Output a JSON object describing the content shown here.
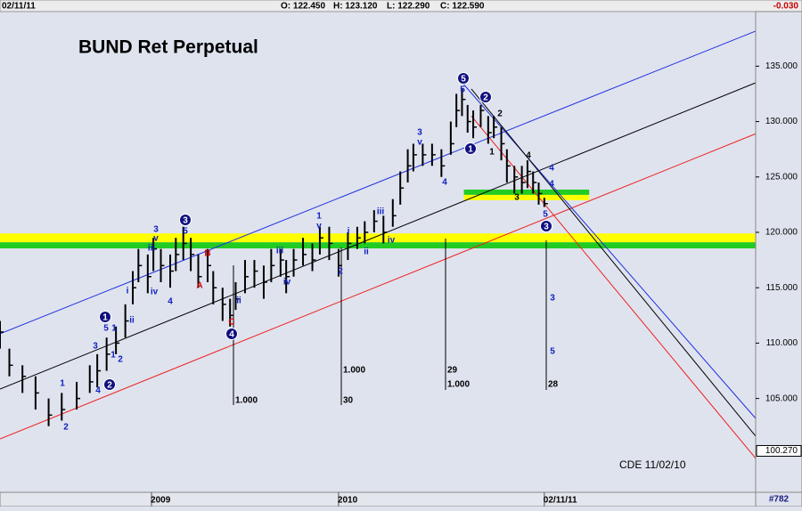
{
  "chart_data": {
    "type": "ohlc",
    "title": "BUND Ret Perpetual",
    "header": {
      "date": "02/11/11",
      "open": "O: 122.450",
      "high": "H: 123.120",
      "low": "L: 122.290",
      "close": "C: 122.590",
      "change": "-0.030"
    },
    "note": "CDE 11/02/10",
    "chart_id": "#782",
    "xlim": [
      2008.19,
      2012.23
    ],
    "xticks": [
      {
        "value": 2009,
        "label": "2009"
      },
      {
        "value": 2010,
        "label": "2010"
      },
      {
        "value": 2011.1,
        "label": "02/11/11"
      }
    ],
    "ylim": [
      96.53,
      139.85
    ],
    "yticks": [
      {
        "value": 105,
        "label": "105.000"
      },
      {
        "value": 110,
        "label": "110.000"
      },
      {
        "value": 115,
        "label": "115.000"
      },
      {
        "value": 120,
        "label": "120.000"
      },
      {
        "value": 125,
        "label": "125.000"
      },
      {
        "value": 130,
        "label": "130.000"
      },
      {
        "value": 135,
        "label": "135.000"
      }
    ],
    "price_marker": {
      "value": 100.27,
      "label": "100.270"
    },
    "bar_color": "#000000",
    "x": [
      2008.19,
      2008.24,
      2008.31,
      2008.38,
      2008.45,
      2008.52,
      2008.6,
      2008.67,
      2008.71,
      2008.76,
      2008.81,
      2008.86,
      2008.9,
      2008.93,
      2008.98,
      2009.01,
      2009.05,
      2009.1,
      2009.13,
      2009.17,
      2009.21,
      2009.25,
      2009.3,
      2009.33,
      2009.38,
      2009.42,
      2009.45,
      2009.5,
      2009.55,
      2009.6,
      2009.64,
      2009.69,
      2009.72,
      2009.76,
      2009.81,
      2009.86,
      2009.9,
      2009.95,
      2010.0,
      2010.05,
      2010.1,
      2010.14,
      2010.19,
      2010.24,
      2010.29,
      2010.33,
      2010.37,
      2010.4,
      2010.45,
      2010.5,
      2010.55,
      2010.6,
      2010.63,
      2010.66,
      2010.69,
      2010.72,
      2010.76,
      2010.8,
      2010.83,
      2010.87,
      2010.9,
      2010.94,
      2010.98,
      2011.01,
      2011.04,
      2011.07,
      2011.1
    ],
    "high": [
      112,
      109.5,
      108,
      107,
      105,
      105.5,
      106.5,
      108,
      109,
      110.5,
      111.5,
      113.5,
      116.5,
      118.5,
      118,
      119.5,
      118.5,
      118,
      119.5,
      120.5,
      119.5,
      118,
      118.5,
      116.5,
      115,
      114,
      115.5,
      117.5,
      117.5,
      117,
      118.5,
      118.5,
      117.5,
      118.5,
      119.5,
      119,
      120.5,
      120.5,
      118.5,
      120,
      120.5,
      121,
      122,
      121.5,
      123,
      125.5,
      127.5,
      128,
      128,
      128,
      127.5,
      130,
      132.5,
      133,
      131.5,
      131,
      131.5,
      130.5,
      130.5,
      129.5,
      127.5,
      126,
      126,
      126.5,
      125.5,
      124.5,
      123.12
    ],
    "low": [
      109.5,
      107,
      105.5,
      104,
      102.5,
      103,
      104,
      105.5,
      106,
      107.5,
      109,
      110.5,
      113.5,
      115.5,
      114.5,
      116.5,
      115.5,
      115,
      116.5,
      117.5,
      116.5,
      115,
      115.5,
      113.5,
      112,
      111.5,
      113,
      114.5,
      115,
      114,
      115.5,
      116,
      114.5,
      116,
      117,
      116.5,
      118,
      117.5,
      116,
      117.5,
      118.5,
      119,
      120,
      119,
      120.5,
      122.5,
      124.5,
      125.5,
      126,
      126,
      125,
      127,
      129.5,
      130.5,
      129,
      128.5,
      129.5,
      128,
      128.5,
      126.5,
      124.5,
      123.5,
      123.5,
      124,
      123.5,
      122.5,
      122.29
    ],
    "close": [
      111,
      108,
      107,
      105.5,
      103.5,
      104,
      105,
      106.5,
      107.5,
      109,
      110,
      112,
      115,
      117,
      116,
      118.5,
      117,
      116.5,
      118,
      119,
      118,
      116,
      117,
      115,
      113.5,
      112.5,
      114,
      116,
      116.5,
      115.5,
      117,
      117.5,
      116,
      117.5,
      118,
      117.5,
      119.5,
      119,
      117,
      119,
      119.5,
      120,
      121,
      120,
      121.5,
      124,
      126,
      127,
      127,
      127,
      126,
      128,
      131,
      132,
      130,
      129.5,
      131,
      129,
      129.5,
      128,
      126,
      125,
      124.5,
      125.5,
      124.5,
      123.5,
      122.59
    ],
    "zones": [
      {
        "x": [
          2008.19,
          2012.23
        ],
        "y": [
          119.1,
          119.9
        ],
        "color": "#ffff00"
      },
      {
        "x": [
          2008.19,
          2012.23
        ],
        "y": [
          118.55,
          119.1
        ],
        "color": "#22cc22"
      },
      {
        "x": [
          2010.67,
          2011.34
        ],
        "y": [
          123.38,
          123.86
        ],
        "color": "#22cc22"
      },
      {
        "x": [
          2010.67,
          2011.34
        ],
        "y": [
          122.9,
          123.38
        ],
        "color": "#ffff00"
      }
    ],
    "trendlines": [
      {
        "x": [
          2008.19,
          2012.23
        ],
        "y": [
          110.84,
          138.17
        ],
        "color": "#2030e0"
      },
      {
        "x": [
          2008.19,
          2012.23
        ],
        "y": [
          105.85,
          133.5
        ],
        "color": "#000000"
      },
      {
        "x": [
          2008.19,
          2012.23
        ],
        "y": [
          101.35,
          128.9
        ],
        "color": "#ee2020"
      },
      {
        "x": [
          2010.67,
          2012.23
        ],
        "y": [
          133.34,
          103.2
        ],
        "color": "#2030e0"
      },
      {
        "x": [
          2010.71,
          2012.23
        ],
        "y": [
          132.94,
          101.6
        ],
        "color": "#000000"
      },
      {
        "x": [
          2010.71,
          2012.23
        ],
        "y": [
          130.5,
          99.6
        ],
        "color": "#ee2020"
      }
    ],
    "annotations": [
      {
        "text": "5",
        "color": "#101080",
        "circled": true
      },
      {
        "text": "2",
        "color": "#101080",
        "circled": true
      },
      {
        "text": "1",
        "color": "#101080",
        "circled": true
      },
      {
        "text": "3",
        "color": "#101080",
        "circled": true
      },
      {
        "text": "3",
        "color": "#101080",
        "circled": true
      },
      {
        "text": "1",
        "color": "#101080",
        "circled": true
      },
      {
        "text": "2",
        "color": "#101080",
        "circled": true
      },
      {
        "text": "4",
        "color": "#101080",
        "circled": true
      },
      {
        "text": "5",
        "color": "#1020c0"
      },
      {
        "text": "3",
        "color": "#1020c0"
      },
      {
        "text": "v",
        "color": "#1020c0"
      },
      {
        "text": "4",
        "color": "#1020c0"
      },
      {
        "text": "2",
        "color": "#000000"
      },
      {
        "text": "1",
        "color": "#000000"
      },
      {
        "text": "3",
        "color": "#000000"
      },
      {
        "text": "4",
        "color": "#000000"
      },
      {
        "text": "5",
        "color": "#1020c0"
      },
      {
        "text": "4",
        "color": "#1020c0"
      },
      {
        "text": "4",
        "color": "#1020c0"
      },
      {
        "text": "3",
        "color": "#1020c0"
      },
      {
        "text": "v",
        "color": "#1020c0"
      },
      {
        "text": "5",
        "color": "#1020c0"
      },
      {
        "text": "iii",
        "color": "#1020c0"
      },
      {
        "text": "iv",
        "color": "#1020c0"
      },
      {
        "text": "4",
        "color": "#1020c0"
      },
      {
        "text": "i",
        "color": "#1020c0"
      },
      {
        "text": "ii",
        "color": "#1020c0"
      },
      {
        "text": "5",
        "color": "#1020c0"
      },
      {
        "text": "1",
        "color": "#1020c0"
      },
      {
        "text": "3",
        "color": "#1020c0"
      },
      {
        "text": "1",
        "color": "#1020c0"
      },
      {
        "text": "2",
        "color": "#1020c0"
      },
      {
        "text": "4",
        "color": "#1020c0"
      },
      {
        "text": "1",
        "color": "#1020c0"
      },
      {
        "text": "2",
        "color": "#1020c0"
      },
      {
        "text": "ii",
        "color": "#1020c0"
      },
      {
        "text": "iii",
        "color": "#1020c0"
      },
      {
        "text": "iv",
        "color": "#1020c0"
      },
      {
        "text": "1",
        "color": "#1020c0"
      },
      {
        "text": "v",
        "color": "#1020c0"
      },
      {
        "text": "2",
        "color": "#1020c0"
      },
      {
        "text": "i",
        "color": "#1020c0"
      },
      {
        "text": "ii",
        "color": "#1020c0"
      },
      {
        "text": "iii",
        "color": "#1020c0"
      },
      {
        "text": "iv",
        "color": "#1020c0"
      },
      {
        "text": "A",
        "color": "#cc0000"
      },
      {
        "text": "B",
        "color": "#cc0000"
      },
      {
        "text": "C",
        "color": "#cc0000"
      },
      {
        "text": "3",
        "color": "#1020c0"
      },
      {
        "text": "5",
        "color": "#1020c0"
      },
      {
        "text": "1.000",
        "color": "#000000"
      },
      {
        "text": "1.000",
        "color": "#000000"
      },
      {
        "text": "30",
        "color": "#000000"
      },
      {
        "text": "29",
        "color": "#000000"
      },
      {
        "text": "1.000",
        "color": "#000000"
      },
      {
        "text": "28",
        "color": "#000000"
      }
    ]
  }
}
